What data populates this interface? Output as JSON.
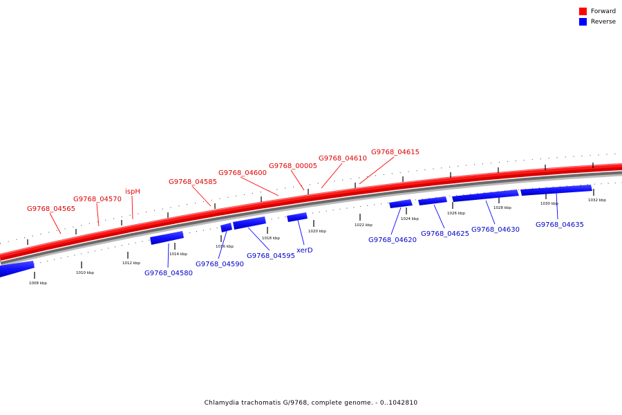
{
  "legend": {
    "forward_label": "Forward",
    "reverse_label": "Reverse",
    "forward_color": "#ff0000",
    "reverse_color": "#0000ff"
  },
  "caption": "Chlamydia trachomatis G/9768, complete genome. - 0..1042810",
  "ticks": {
    "unit": "kbp",
    "labels": [
      "1008 kbp",
      "1010 kbp",
      "1012 kbp",
      "1014 kbp",
      "1016 kbp",
      "1018 kbp",
      "1020 kbp",
      "1022 kbp",
      "1024 kbp",
      "1026 kbp",
      "1028 kbp",
      "1030 kbp",
      "1032 kbp"
    ]
  },
  "genes": {
    "forward": [
      "G9768_04565",
      "G9768_04570",
      "ispH",
      "G9768_04585",
      "G9768_04600",
      "G9768_00005",
      "G9768_04610",
      "G9768_04615"
    ],
    "reverse": [
      "G9768_04580",
      "G9768_04590",
      "G9768_04595",
      "xerD",
      "G9768_04620",
      "G9768_04625",
      "G9768_04630",
      "G9768_04635"
    ]
  }
}
